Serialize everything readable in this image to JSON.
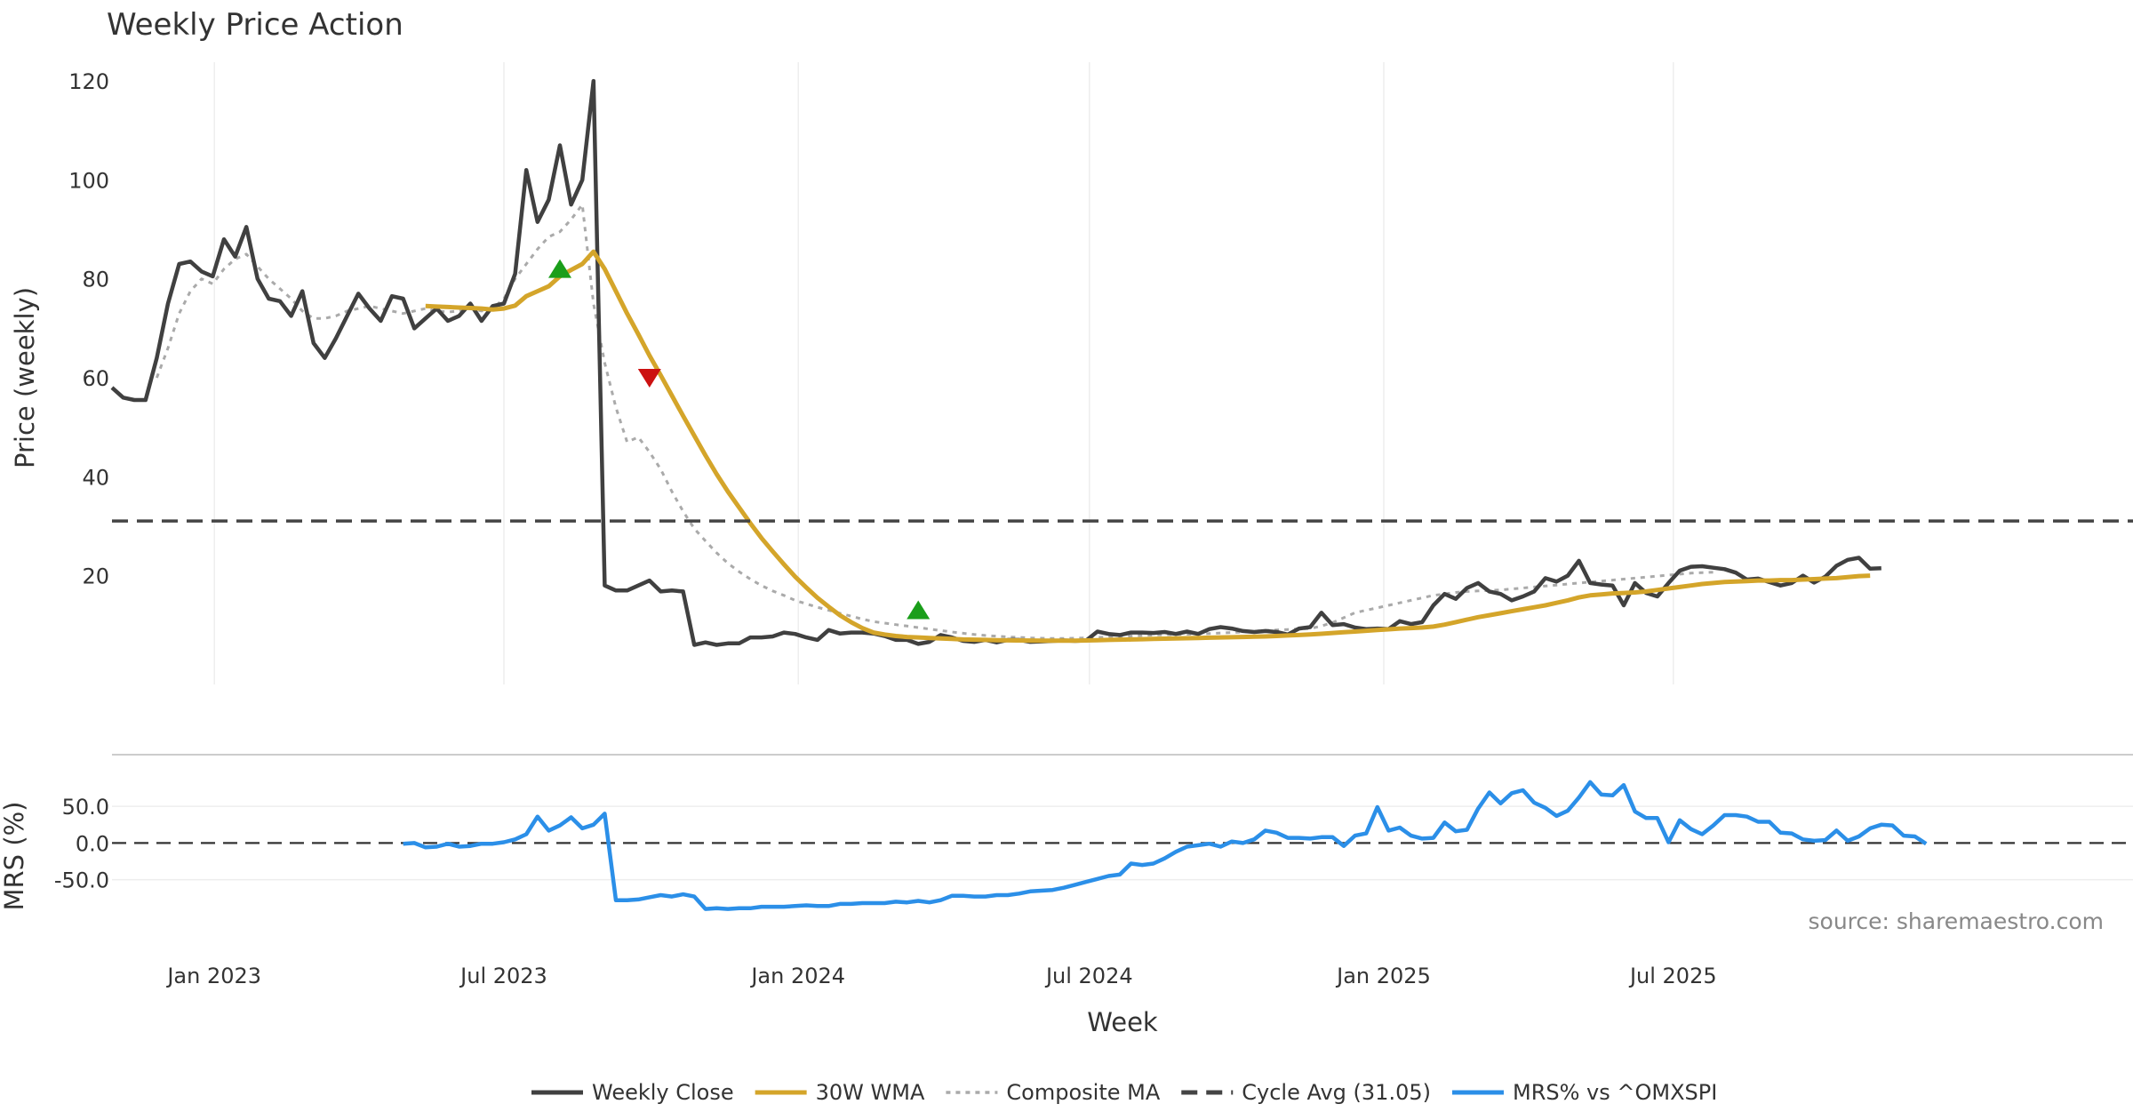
{
  "chart_data": {
    "type": "line",
    "title": "Weekly Price Action",
    "xlabel": "Week",
    "source": "source: sharemaestro.com",
    "x_ticks": [
      "Jan 2023",
      "Jul 2023",
      "Jan 2024",
      "Jul 2024",
      "Jan 2025",
      "Jul 2025"
    ],
    "x_range": [
      "2022-10-29",
      "2025-10-25"
    ],
    "price_panel": {
      "ylabel": "Price (weekly)",
      "ylim": [
        -2,
        122
      ],
      "y_ticks": [
        "20",
        "40",
        "60",
        "80",
        "100",
        "120"
      ],
      "series": [
        {
          "name": "Weekly Close",
          "color": "#404040",
          "style": "solid",
          "start_week": 0,
          "values": [
            58,
            56,
            55.5,
            55.5,
            64,
            75,
            83,
            83.5,
            81.5,
            80.5,
            88,
            84.5,
            90.5,
            80,
            76,
            75.5,
            72.5,
            77.5,
            67,
            64,
            68,
            72.5,
            77,
            74,
            71.5,
            76.5,
            76,
            70,
            72,
            74,
            71.5,
            72.5,
            75,
            71.5,
            74.5,
            75,
            81,
            102,
            91.5,
            96,
            107,
            95,
            100,
            120,
            18,
            17,
            17,
            18,
            19,
            16.8,
            17,
            16.8,
            6,
            6.5,
            6,
            6.3,
            6.3,
            7.5,
            7.5,
            7.7,
            8.5,
            8.2,
            7.5,
            7,
            9,
            8.3,
            8.5,
            8.5,
            8.3,
            7.8,
            7,
            7,
            6.2,
            6.6,
            8,
            7.5,
            6.8,
            6.6,
            7,
            6.5,
            7,
            7,
            6.6,
            6.7,
            6.8,
            6.9,
            6.8,
            6.9,
            8.7,
            8.2,
            8,
            8.5,
            8.5,
            8.4,
            8.6,
            8.2,
            8.7,
            8.2,
            9.2,
            9.6,
            9.3,
            8.8,
            8.6,
            8.8,
            8.6,
            8.1,
            9.3,
            9.6,
            12.5,
            10,
            10.2,
            9.5,
            9.2,
            9.3,
            9.2,
            10.8,
            10.2,
            10.6,
            14,
            16.3,
            15.3,
            17.5,
            18.5,
            16.8,
            16.3,
            15,
            15.8,
            16.8,
            19.5,
            18.8,
            20,
            23,
            18.5,
            18.2,
            18,
            14,
            18.5,
            16.5,
            15.8,
            18.5,
            21,
            21.8,
            21.9,
            21.6,
            21.3,
            20.6,
            19.2,
            19.4,
            18.7,
            18,
            18.5,
            20,
            18.6,
            19.8,
            22,
            23.2,
            23.6,
            21.4,
            21.5
          ]
        },
        {
          "name": "30W WMA",
          "color": "#D4A52A",
          "style": "solid",
          "start_week": 28,
          "values": [
            74.5,
            74.4,
            74.3,
            74.2,
            74.1,
            74,
            73.8,
            74,
            74.6,
            76.5,
            77.5,
            78.5,
            80.5,
            81.8,
            83,
            85.5,
            82,
            77.5,
            73,
            68.8,
            64.5,
            60.5,
            56.4,
            52.3,
            48.3,
            44.3,
            40.5,
            37,
            33.8,
            30.6,
            27.6,
            24.9,
            22.3,
            19.8,
            17.6,
            15.5,
            13.7,
            12,
            10.6,
            9.4,
            8.5,
            8.1,
            7.8,
            7.6,
            7.5,
            7.4,
            7.3,
            7.2,
            7.1,
            7.05,
            7,
            6.95,
            6.92,
            6.9,
            6.88,
            6.86,
            6.85,
            6.84,
            6.86,
            6.9,
            6.95,
            7,
            7.05,
            7.1,
            7.15,
            7.2,
            7.25,
            7.3,
            7.35,
            7.4,
            7.45,
            7.5,
            7.55,
            7.6,
            7.65,
            7.7,
            7.8,
            7.9,
            8,
            8.1,
            8.25,
            8.4,
            8.55,
            8.7,
            8.85,
            9,
            9.15,
            9.3,
            9.4,
            9.5,
            9.7,
            10.1,
            10.6,
            11.1,
            11.6,
            12,
            12.4,
            12.8,
            13.2,
            13.6,
            14,
            14.5,
            15,
            15.6,
            16,
            16.2,
            16.4,
            16.5,
            16.6,
            16.8,
            17.1,
            17.4,
            17.7,
            18,
            18.3,
            18.5,
            18.7,
            18.8,
            18.9,
            19,
            19,
            19.1,
            19.1,
            19.2,
            19.3,
            19.4,
            19.5,
            19.7,
            19.9,
            20
          ]
        },
        {
          "name": "Composite MA",
          "color": "#AAAAAA",
          "style": "dotted",
          "start_week": 4,
          "values": [
            60,
            66,
            73,
            77.5,
            80,
            79,
            82,
            84,
            85,
            82.5,
            80,
            78,
            76,
            73.5,
            72,
            72,
            72.5,
            73.5,
            74,
            74.5,
            74,
            73.5,
            73,
            73.5,
            74,
            73.5,
            73.3,
            73.5,
            74,
            73.5,
            74,
            76,
            80,
            83,
            86,
            88.5,
            89.5,
            92,
            95,
            75,
            63,
            54,
            47,
            48,
            45,
            41.5,
            37,
            33,
            29.5,
            27,
            24.6,
            22.5,
            20.8,
            19.3,
            18,
            16.9,
            16,
            15,
            14.3,
            13.6,
            13,
            12.4,
            11.8,
            11.2,
            10.7,
            10.4,
            10.1,
            9.8,
            9.5,
            9.2,
            8.9,
            8.6,
            8.35,
            8.1,
            7.9,
            7.75,
            7.6,
            7.5,
            7.4,
            7.35,
            7.3,
            7.3,
            7.35,
            7.4,
            7.5,
            7.6,
            7.7,
            7.8,
            7.9,
            8,
            8.05,
            8.1,
            8.15,
            8.2,
            8.3,
            8.4,
            8.5,
            8.6,
            8.75,
            8.9,
            9,
            9.1,
            9.2,
            9.3,
            9.8,
            10.5,
            11.5,
            12.5,
            13,
            13.5,
            14,
            14.5,
            15,
            15.5,
            16,
            16.3,
            16.6,
            16.8,
            16.9,
            17,
            17.1,
            17.3,
            17.5,
            17.7,
            17.9,
            18.1,
            18.3,
            18.5,
            18.7,
            18.9,
            19.1,
            19.3,
            19.5,
            19.7,
            19.9,
            20.1,
            20.3,
            20.5,
            20.6,
            20.7
          ]
        },
        {
          "name": "Cycle Avg (31.05)",
          "color": "#444444",
          "style": "dashed",
          "constant": 31.05
        }
      ],
      "signals": [
        {
          "type": "buy",
          "week": 40,
          "value": 82,
          "color": "#1a9e1a"
        },
        {
          "type": "sell",
          "week": 48,
          "value": 60,
          "color": "#cc1111"
        },
        {
          "type": "buy",
          "week": 72,
          "value": 13,
          "color": "#1a9e1a"
        }
      ]
    },
    "mrs_panel": {
      "ylabel": "MRS (%)",
      "ylim": [
        -105,
        95
      ],
      "y_ticks": [
        "50.0",
        "0.0",
        "-50.0"
      ],
      "zero_line": 0,
      "series": [
        {
          "name": "MRS% vs ^OMXSPI",
          "color": "#2B8FE8",
          "style": "solid",
          "start_week": 26,
          "values": [
            -1,
            0,
            -6,
            -5,
            -1,
            -5,
            -4,
            -1,
            -1,
            1,
            5,
            12,
            36,
            17,
            24,
            35,
            20,
            25,
            40,
            -78,
            -78,
            -77,
            -74,
            -71,
            -73,
            -70,
            -73,
            -90,
            -89,
            -90,
            -89,
            -89,
            -87,
            -87,
            -87,
            -86,
            -85,
            -86,
            -86,
            -83,
            -83,
            -82,
            -82,
            -82,
            -80,
            -81,
            -79,
            -81,
            -78,
            -72,
            -72,
            -73,
            -73,
            -71,
            -71,
            -69,
            -66,
            -65,
            -64,
            -61,
            -57,
            -53,
            -49,
            -45,
            -43,
            -28,
            -30,
            -28,
            -21,
            -12,
            -5,
            -3,
            -1,
            -5,
            2,
            0,
            5,
            17,
            14,
            7,
            7,
            6,
            8,
            8,
            -4,
            10,
            13,
            49,
            17,
            21,
            10,
            6,
            7,
            28,
            16,
            18,
            47,
            69,
            54,
            68,
            72,
            55,
            48,
            37,
            44,
            62,
            83,
            66,
            65,
            79,
            43,
            34,
            34,
            1,
            31,
            19,
            12,
            24,
            38,
            38,
            36,
            29,
            29,
            14,
            13,
            5,
            3,
            4,
            17,
            3,
            9,
            20,
            25,
            24,
            10,
            9,
            -1
          ]
        }
      ]
    },
    "legend": [
      {
        "label": "Weekly Close",
        "color": "#404040",
        "style": "solid"
      },
      {
        "label": "30W WMA",
        "color": "#D4A52A",
        "style": "solid"
      },
      {
        "label": "Composite MA",
        "color": "#AAAAAA",
        "style": "dotted"
      },
      {
        "label": "Cycle Avg (31.05)",
        "color": "#444444",
        "style": "dashed"
      },
      {
        "label": "MRS% vs ^OMXSPI",
        "color": "#2B8FE8",
        "style": "solid"
      }
    ],
    "legend_position": "bottom-center"
  }
}
